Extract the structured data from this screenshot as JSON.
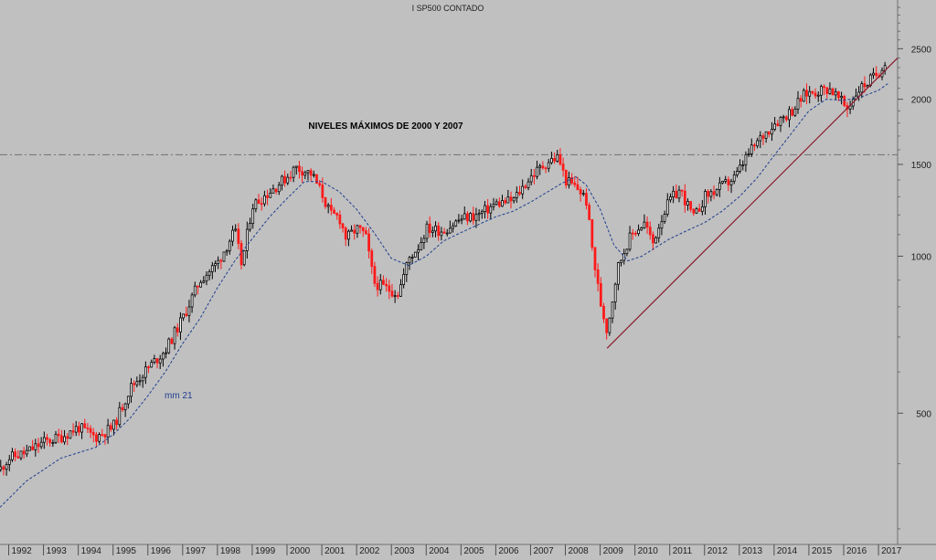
{
  "chart_data": {
    "type": "candlestick",
    "title": "I SP500 CONTADO",
    "annotation": "NIVELES MÁXIMOS DE 2000 Y 2007",
    "ma_label": "mm 21",
    "y_scale": "log",
    "ylim": [
      280,
      3100
    ],
    "y_ticks": [
      500,
      1000,
      1500,
      2000,
      2500
    ],
    "x_year_labels": [
      "1992",
      "1993",
      "1994",
      "1995",
      "1996",
      "1997",
      "1998",
      "1999",
      "2000",
      "2001",
      "2002",
      "2003",
      "2004",
      "2005",
      "2006",
      "2007",
      "2008",
      "2009",
      "2010",
      "2011",
      "2012",
      "2013",
      "2014",
      "2015",
      "2016",
      "2017"
    ],
    "x_range": [
      1991.75,
      2017.55
    ],
    "resistance_level": 1565,
    "trendline": {
      "from": [
        2009.2,
        666
      ],
      "to": [
        2017.55,
        2400
      ]
    },
    "price_path": {
      "x": [
        1991.75,
        1992.0,
        1992.5,
        1993.0,
        1993.5,
        1994.0,
        1994.5,
        1995.0,
        1995.5,
        1996.0,
        1996.5,
        1997.0,
        1997.5,
        1998.0,
        1998.5,
        1998.7,
        1999.0,
        1999.5,
        2000.0,
        2000.25,
        2000.7,
        2001.0,
        2001.25,
        2001.5,
        2001.7,
        2002.0,
        2002.25,
        2002.5,
        2002.8,
        2003.2,
        2003.5,
        2003.8,
        2004.0,
        2004.5,
        2005.0,
        2005.5,
        2006.0,
        2006.5,
        2007.0,
        2007.5,
        2007.8,
        2008.0,
        2008.4,
        2008.6,
        2008.8,
        2009.0,
        2009.2,
        2009.5,
        2009.8,
        2010.0,
        2010.3,
        2010.5,
        2010.75,
        2011.0,
        2011.3,
        2011.7,
        2012.0,
        2012.5,
        2012.9,
        2013.2,
        2013.6,
        2014.0,
        2014.5,
        2014.9,
        2015.3,
        2015.6,
        2015.9,
        2016.1,
        2016.4,
        2016.7,
        2017.0,
        2017.2
      ],
      "y": [
        390,
        410,
        420,
        440,
        450,
        470,
        450,
        470,
        560,
        610,
        660,
        760,
        900,
        970,
        1120,
        960,
        1250,
        1330,
        1420,
        1480,
        1440,
        1320,
        1200,
        1190,
        1080,
        1130,
        1100,
        890,
        870,
        850,
        990,
        1050,
        1130,
        1120,
        1180,
        1200,
        1260,
        1280,
        1420,
        1520,
        1550,
        1400,
        1340,
        1280,
        1000,
        820,
        720,
        950,
        1070,
        1120,
        1160,
        1050,
        1180,
        1280,
        1340,
        1180,
        1300,
        1360,
        1420,
        1550,
        1680,
        1800,
        1900,
        2050,
        2080,
        2100,
        1990,
        1920,
        2080,
        2160,
        2250,
        2380
      ]
    },
    "ma_path": {
      "x": [
        1991.75,
        1992.5,
        1993.5,
        1994.5,
        1995.0,
        1995.5,
        1996.0,
        1996.5,
        1997.0,
        1997.5,
        1998.0,
        1998.5,
        1999.0,
        1999.5,
        2000.0,
        2000.5,
        2001.0,
        2001.5,
        2002.0,
        2002.5,
        2003.0,
        2003.5,
        2004.0,
        2004.5,
        2005.0,
        2005.5,
        2006.0,
        2006.5,
        2007.0,
        2007.5,
        2007.9,
        2008.3,
        2008.6,
        2009.0,
        2009.4,
        2009.8,
        2010.2,
        2010.6,
        2011.0,
        2011.5,
        2012.0,
        2012.5,
        2013.0,
        2013.5,
        2014.0,
        2014.5,
        2015.0,
        2015.5,
        2016.0,
        2016.5,
        2017.0,
        2017.3
      ],
      "y": [
        330,
        370,
        410,
        430,
        455,
        490,
        540,
        600,
        680,
        760,
        870,
        980,
        1080,
        1190,
        1290,
        1390,
        1390,
        1330,
        1230,
        1110,
        990,
        960,
        1000,
        1070,
        1110,
        1150,
        1190,
        1220,
        1270,
        1330,
        1380,
        1420,
        1370,
        1230,
        1050,
        980,
        1000,
        1040,
        1080,
        1120,
        1160,
        1220,
        1300,
        1410,
        1560,
        1720,
        1900,
        2000,
        1990,
        2020,
        2080,
        2150
      ]
    }
  }
}
